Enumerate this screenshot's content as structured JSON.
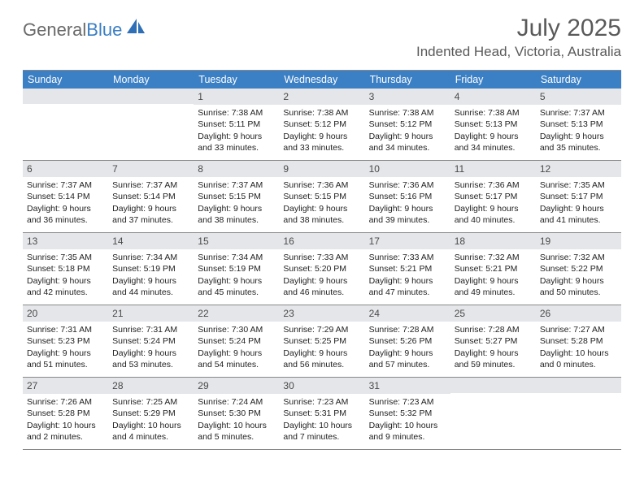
{
  "brand": {
    "text1": "General",
    "text2": "Blue",
    "color1": "#6a6a6a",
    "color2": "#3b7fc4"
  },
  "header": {
    "title": "July 2025",
    "location": "Indented Head, Victoria, Australia"
  },
  "style": {
    "accent": "#3b7fc4",
    "band_bg": "#e4e6e9",
    "rule": "#888888",
    "text": "#222222",
    "title_color": "#5a5a5a",
    "page_bg": "#ffffff",
    "body_fontsize": 10.5,
    "dow_fontsize": 12.5,
    "daynum_fontsize": 12,
    "title_fontsize": 30,
    "location_fontsize": 17
  },
  "days_of_week": [
    "Sunday",
    "Monday",
    "Tuesday",
    "Wednesday",
    "Thursday",
    "Friday",
    "Saturday"
  ],
  "weeks": [
    [
      null,
      null,
      {
        "n": "1",
        "sunrise": "7:38 AM",
        "sunset": "5:11 PM",
        "daylight": "9 hours and 33 minutes."
      },
      {
        "n": "2",
        "sunrise": "7:38 AM",
        "sunset": "5:12 PM",
        "daylight": "9 hours and 33 minutes."
      },
      {
        "n": "3",
        "sunrise": "7:38 AM",
        "sunset": "5:12 PM",
        "daylight": "9 hours and 34 minutes."
      },
      {
        "n": "4",
        "sunrise": "7:38 AM",
        "sunset": "5:13 PM",
        "daylight": "9 hours and 34 minutes."
      },
      {
        "n": "5",
        "sunrise": "7:37 AM",
        "sunset": "5:13 PM",
        "daylight": "9 hours and 35 minutes."
      }
    ],
    [
      {
        "n": "6",
        "sunrise": "7:37 AM",
        "sunset": "5:14 PM",
        "daylight": "9 hours and 36 minutes."
      },
      {
        "n": "7",
        "sunrise": "7:37 AM",
        "sunset": "5:14 PM",
        "daylight": "9 hours and 37 minutes."
      },
      {
        "n": "8",
        "sunrise": "7:37 AM",
        "sunset": "5:15 PM",
        "daylight": "9 hours and 38 minutes."
      },
      {
        "n": "9",
        "sunrise": "7:36 AM",
        "sunset": "5:15 PM",
        "daylight": "9 hours and 38 minutes."
      },
      {
        "n": "10",
        "sunrise": "7:36 AM",
        "sunset": "5:16 PM",
        "daylight": "9 hours and 39 minutes."
      },
      {
        "n": "11",
        "sunrise": "7:36 AM",
        "sunset": "5:17 PM",
        "daylight": "9 hours and 40 minutes."
      },
      {
        "n": "12",
        "sunrise": "7:35 AM",
        "sunset": "5:17 PM",
        "daylight": "9 hours and 41 minutes."
      }
    ],
    [
      {
        "n": "13",
        "sunrise": "7:35 AM",
        "sunset": "5:18 PM",
        "daylight": "9 hours and 42 minutes."
      },
      {
        "n": "14",
        "sunrise": "7:34 AM",
        "sunset": "5:19 PM",
        "daylight": "9 hours and 44 minutes."
      },
      {
        "n": "15",
        "sunrise": "7:34 AM",
        "sunset": "5:19 PM",
        "daylight": "9 hours and 45 minutes."
      },
      {
        "n": "16",
        "sunrise": "7:33 AM",
        "sunset": "5:20 PM",
        "daylight": "9 hours and 46 minutes."
      },
      {
        "n": "17",
        "sunrise": "7:33 AM",
        "sunset": "5:21 PM",
        "daylight": "9 hours and 47 minutes."
      },
      {
        "n": "18",
        "sunrise": "7:32 AM",
        "sunset": "5:21 PM",
        "daylight": "9 hours and 49 minutes."
      },
      {
        "n": "19",
        "sunrise": "7:32 AM",
        "sunset": "5:22 PM",
        "daylight": "9 hours and 50 minutes."
      }
    ],
    [
      {
        "n": "20",
        "sunrise": "7:31 AM",
        "sunset": "5:23 PM",
        "daylight": "9 hours and 51 minutes."
      },
      {
        "n": "21",
        "sunrise": "7:31 AM",
        "sunset": "5:24 PM",
        "daylight": "9 hours and 53 minutes."
      },
      {
        "n": "22",
        "sunrise": "7:30 AM",
        "sunset": "5:24 PM",
        "daylight": "9 hours and 54 minutes."
      },
      {
        "n": "23",
        "sunrise": "7:29 AM",
        "sunset": "5:25 PM",
        "daylight": "9 hours and 56 minutes."
      },
      {
        "n": "24",
        "sunrise": "7:28 AM",
        "sunset": "5:26 PM",
        "daylight": "9 hours and 57 minutes."
      },
      {
        "n": "25",
        "sunrise": "7:28 AM",
        "sunset": "5:27 PM",
        "daylight": "9 hours and 59 minutes."
      },
      {
        "n": "26",
        "sunrise": "7:27 AM",
        "sunset": "5:28 PM",
        "daylight": "10 hours and 0 minutes."
      }
    ],
    [
      {
        "n": "27",
        "sunrise": "7:26 AM",
        "sunset": "5:28 PM",
        "daylight": "10 hours and 2 minutes."
      },
      {
        "n": "28",
        "sunrise": "7:25 AM",
        "sunset": "5:29 PM",
        "daylight": "10 hours and 4 minutes."
      },
      {
        "n": "29",
        "sunrise": "7:24 AM",
        "sunset": "5:30 PM",
        "daylight": "10 hours and 5 minutes."
      },
      {
        "n": "30",
        "sunrise": "7:23 AM",
        "sunset": "5:31 PM",
        "daylight": "10 hours and 7 minutes."
      },
      {
        "n": "31",
        "sunrise": "7:23 AM",
        "sunset": "5:32 PM",
        "daylight": "10 hours and 9 minutes."
      },
      null,
      null
    ]
  ],
  "labels": {
    "sunrise": "Sunrise:",
    "sunset": "Sunset:",
    "daylight": "Daylight:"
  }
}
